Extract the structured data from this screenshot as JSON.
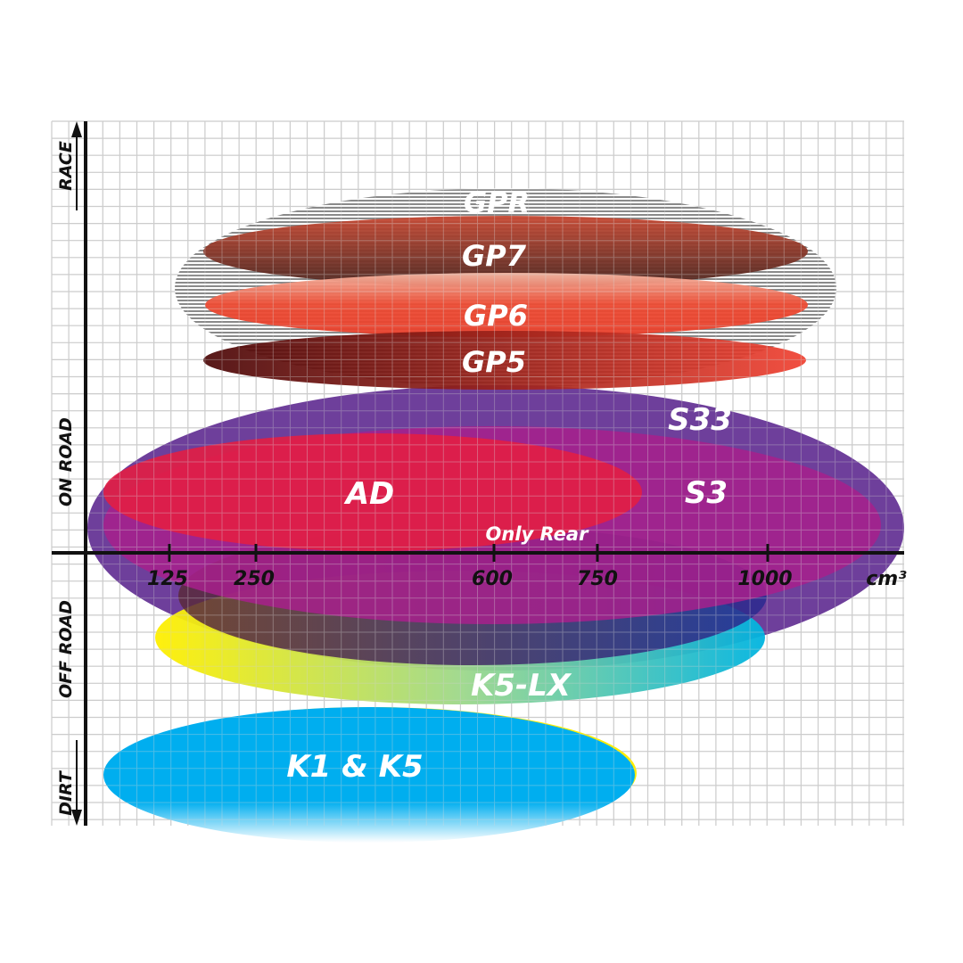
{
  "axes": {
    "y_categories": [
      "RACE",
      "ON ROAD",
      "OFF ROAD",
      "DIRT"
    ],
    "x_ticks": [
      "125",
      "250",
      "600",
      "750",
      "1000"
    ],
    "x_unit": "cm³"
  },
  "products": [
    {
      "label": "GPR",
      "color": "#9a9a9a"
    },
    {
      "label": "GP7",
      "color": "#8a3a2a"
    },
    {
      "label": "GP6",
      "color": "#e8432f"
    },
    {
      "label": "GP5",
      "color": "#b01818"
    },
    {
      "label": "S33",
      "color": "#5e2a90"
    },
    {
      "label": "S3",
      "color": "#a0208a"
    },
    {
      "label": "AD",
      "color": "#e01e48"
    },
    {
      "label": "Only Rear",
      "color": "#4a2a60"
    },
    {
      "label": "K5-LX",
      "color": "#00b4d8"
    },
    {
      "label": "K1 & K5",
      "color": "#00aeef"
    }
  ]
}
